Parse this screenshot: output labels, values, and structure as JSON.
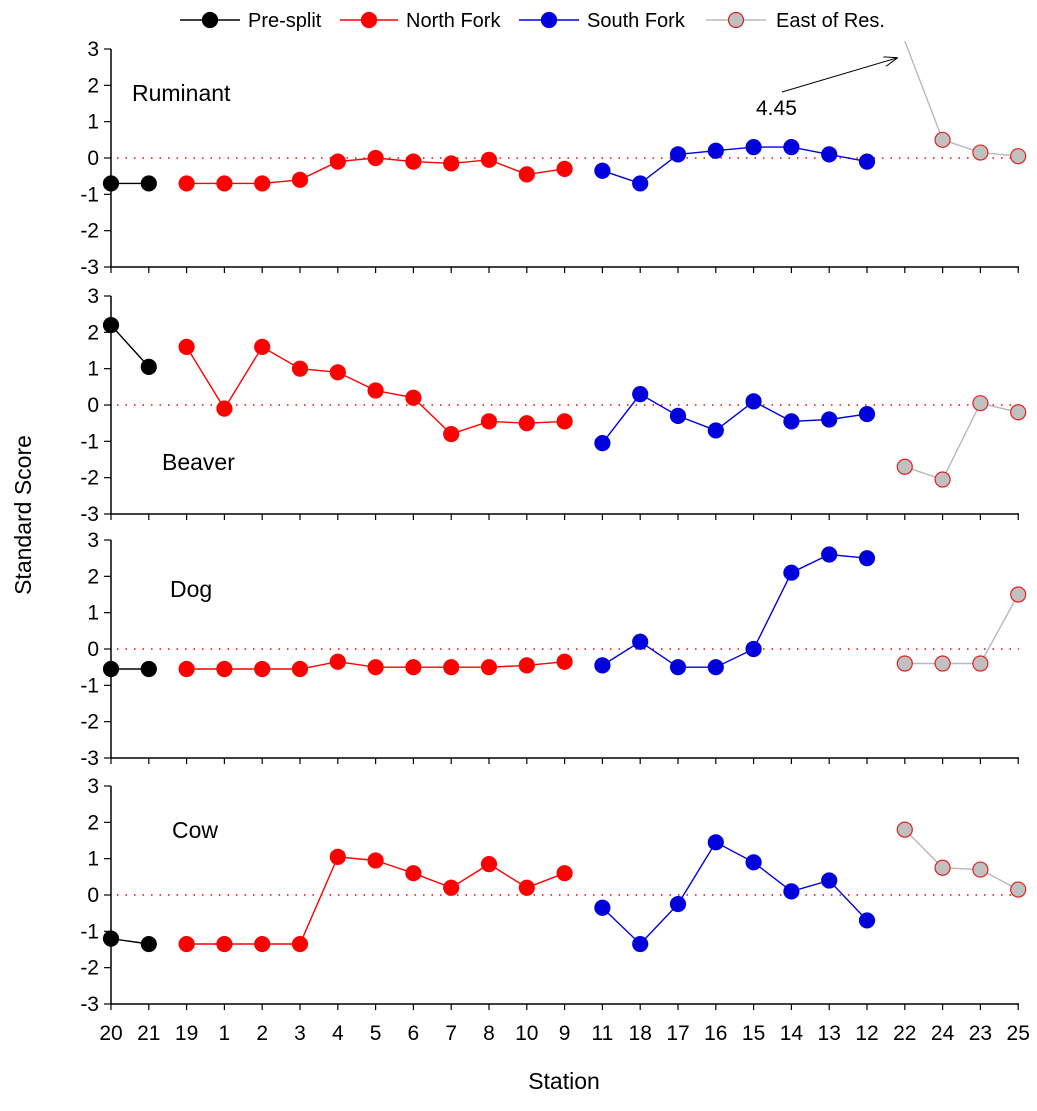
{
  "chart_data": {
    "type": "line",
    "xlabel": "Station",
    "ylabel": "Standard Score",
    "ylim": [
      -3,
      3
    ],
    "yticks": [
      3,
      2,
      1,
      0,
      -1,
      -2,
      -3
    ],
    "zero_reference_line": true,
    "categories": [
      "20",
      "21",
      "19",
      "1",
      "2",
      "3",
      "4",
      "5",
      "6",
      "7",
      "8",
      "10",
      "9",
      "11",
      "18",
      "17",
      "16",
      "15",
      "14",
      "13",
      "12",
      "22",
      "24",
      "23",
      "25"
    ],
    "groups": [
      {
        "name": "Pre-split",
        "start": 0,
        "end": 1,
        "line_color": "#000000",
        "marker_fill": "#000000",
        "marker_edge": "#000000"
      },
      {
        "name": "North Fork",
        "start": 2,
        "end": 12,
        "line_color": "#ff0000",
        "marker_fill": "#ff0000",
        "marker_edge": "#ff0000"
      },
      {
        "name": "South Fork",
        "start": 13,
        "end": 20,
        "line_color": "#0000dd",
        "marker_fill": "#0000dd",
        "marker_edge": "#0000dd"
      },
      {
        "name": "East of Res.",
        "start": 21,
        "end": 24,
        "line_color": "#b8b8b8",
        "marker_fill": "#c0c0c0",
        "marker_edge": "#e02020"
      }
    ],
    "legend": {
      "placement": "top",
      "entries": [
        "Pre-split",
        "North Fork",
        "South Fork",
        "East of Res."
      ]
    },
    "panels": [
      {
        "name": "Ruminant",
        "values": [
          -0.7,
          -0.7,
          -0.7,
          -0.7,
          -0.7,
          -0.6,
          -0.1,
          0.0,
          -0.1,
          -0.15,
          -0.05,
          -0.45,
          -0.3,
          -0.35,
          -0.7,
          0.1,
          0.2,
          0.3,
          0.3,
          0.1,
          -0.1,
          4.45,
          0.5,
          0.15,
          0.05
        ],
        "annotation": {
          "text": "4.45",
          "points_to_category": "22",
          "off_scale_value": 4.45
        }
      },
      {
        "name": "Beaver",
        "values": [
          2.2,
          1.05,
          1.6,
          -0.1,
          1.6,
          1.0,
          0.9,
          0.4,
          0.2,
          -0.8,
          -0.45,
          -0.5,
          -0.45,
          -1.05,
          0.3,
          -0.3,
          -0.7,
          0.1,
          -0.45,
          -0.4,
          -0.25,
          -1.7,
          -2.05,
          0.05,
          -0.2
        ]
      },
      {
        "name": "Dog",
        "values": [
          -0.55,
          -0.55,
          -0.55,
          -0.55,
          -0.55,
          -0.55,
          -0.35,
          -0.5,
          -0.5,
          -0.5,
          -0.5,
          -0.45,
          -0.35,
          -0.45,
          0.2,
          -0.5,
          -0.5,
          0.0,
          2.1,
          2.6,
          2.5,
          -0.4,
          -0.4,
          -0.4,
          1.5
        ]
      },
      {
        "name": "Cow",
        "values": [
          -1.2,
          -1.35,
          -1.35,
          -1.35,
          -1.35,
          -1.35,
          1.05,
          0.95,
          0.6,
          0.2,
          0.85,
          0.2,
          0.6,
          -0.35,
          -1.35,
          -0.25,
          1.45,
          0.9,
          0.1,
          0.4,
          -0.7,
          1.8,
          0.75,
          0.7,
          0.15
        ]
      }
    ]
  }
}
